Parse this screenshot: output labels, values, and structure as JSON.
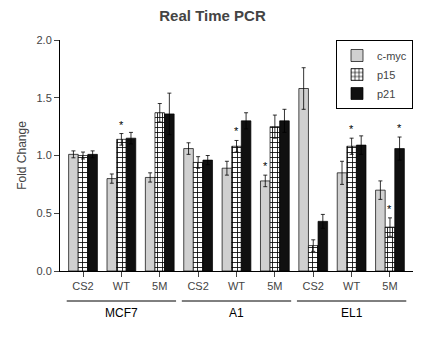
{
  "chart_data": {
    "type": "bar",
    "title": "Real Time PCR",
    "ylabel": "Fold Change",
    "categories": [
      "CS2",
      "WT",
      "5M",
      "CS2",
      "WT",
      "5M",
      "CS2",
      "WT",
      "5M"
    ],
    "category_groups": [
      "MCF7",
      "MCF7",
      "MCF7",
      "A1",
      "A1",
      "A1",
      "EL1",
      "EL1",
      "EL1"
    ],
    "series": [
      {
        "name": "c-myc",
        "color": "#d0d0d0",
        "values": [
          1.01,
          0.8,
          0.81,
          1.06,
          0.89,
          0.78,
          1.58,
          0.85,
          0.7
        ],
        "errors": [
          0.03,
          0.04,
          0.04,
          0.05,
          0.06,
          0.05,
          0.18,
          0.1,
          0.08
        ],
        "annotations": [
          null,
          null,
          null,
          null,
          null,
          "*",
          null,
          null,
          null
        ]
      },
      {
        "name": "p15",
        "color": "#ffffff",
        "marker": "hatch",
        "values": [
          1.0,
          1.14,
          1.37,
          0.94,
          1.08,
          1.25,
          0.22,
          1.08,
          0.38
        ],
        "errors": [
          0.03,
          0.05,
          0.08,
          0.05,
          0.05,
          0.1,
          0.05,
          0.07,
          0.08
        ],
        "annotations": [
          null,
          "*",
          null,
          null,
          "*",
          null,
          null,
          "*",
          "*"
        ]
      },
      {
        "name": "p21",
        "color": "#101010",
        "values": [
          1.01,
          1.15,
          1.36,
          0.96,
          1.3,
          1.3,
          0.43,
          1.09,
          1.06
        ],
        "errors": [
          0.03,
          0.05,
          0.18,
          0.04,
          0.07,
          0.1,
          0.06,
          0.08,
          0.1
        ],
        "annotations": [
          null,
          null,
          null,
          null,
          null,
          null,
          null,
          null,
          "*"
        ]
      }
    ],
    "ylim": [
      0.0,
      2.0
    ],
    "yticks": [
      {
        "value": 0.0,
        "label": "0.0"
      },
      0.5,
      {
        "value": 1.0,
        "label": "1.0"
      },
      1.5,
      {
        "value": 2.0,
        "label": "2.0"
      }
    ],
    "grid": false,
    "legend": "upper right"
  }
}
